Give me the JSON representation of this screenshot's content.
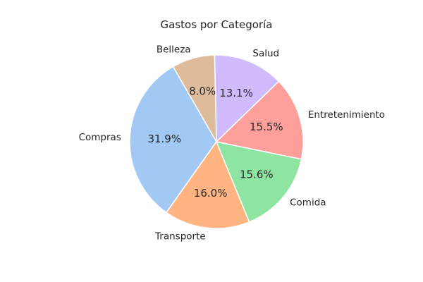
{
  "chart_data": {
    "type": "pie",
    "title": "Gastos por Categoría",
    "start_angle_deg": 120,
    "direction": "counterclockwise",
    "slices": [
      {
        "label": "Compras",
        "value": 31.9,
        "pct_label": "31.9%",
        "color": "#a1c9f4"
      },
      {
        "label": "Transporte",
        "value": 16.0,
        "pct_label": "16.0%",
        "color": "#ffb482"
      },
      {
        "label": "Comida",
        "value": 15.6,
        "pct_label": "15.6%",
        "color": "#8de5a1"
      },
      {
        "label": "Entretenimiento",
        "value": 15.5,
        "pct_label": "15.5%",
        "color": "#ff9f9b"
      },
      {
        "label": "Salud",
        "value": 13.1,
        "pct_label": "13.1%",
        "color": "#d0bbff"
      },
      {
        "label": "Belleza",
        "value": 8.0,
        "pct_label": "8.0%",
        "color": "#debb9b"
      }
    ]
  }
}
